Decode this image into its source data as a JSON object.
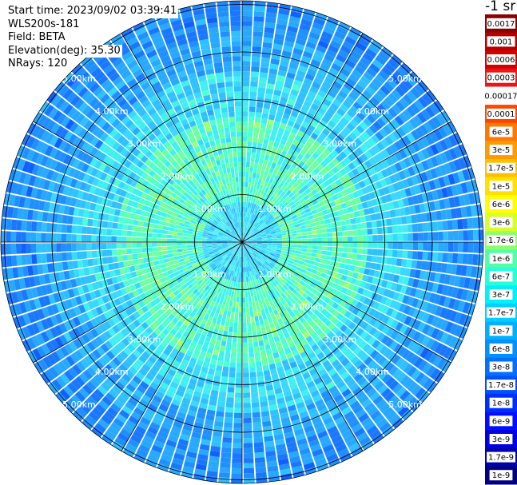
{
  "info": {
    "start_time": "Start time: 2023/09/02 03:39:41",
    "instrument": "WLS200s-181",
    "field": "Field: BETA",
    "elevation": "Elevation(deg): 35.30",
    "nrays": "NRays: 120"
  },
  "colorbar": {
    "units_label": "-1 sr",
    "labels": [
      "0.0017",
      "0.001",
      "0.0006",
      "0.0003",
      "0.00017",
      "0.0001",
      "6e-5",
      "3e-5",
      "1.7e-5",
      "1e-5",
      "6e-6",
      "3e-6",
      "1.7e-6",
      "1e-6",
      "6e-7",
      "3e-7",
      "1.7e-7",
      "1e-7",
      "6e-8",
      "3e-8",
      "1.7e-8",
      "1e-8",
      "6e-9",
      "3e-9",
      "1.7e-9",
      "1e-9"
    ],
    "colors": [
      "#8b0000",
      "#b80000",
      "#d40000",
      "#ee1515",
      "#ffffff",
      "#ff4500",
      "#ff7800",
      "#ff9a00",
      "#ffbf00",
      "#ffe000",
      "#ffff00",
      "#d8ff28",
      "#90ff6e",
      "#50ffa8",
      "#28ffd8",
      "#00f0ff",
      "#00d0ff",
      "#00b0ff",
      "#0090ff",
      "#0070ff",
      "#0050ff",
      "#0030ff",
      "#0010ff",
      "#0000e0",
      "#0000b0",
      "#000080"
    ]
  },
  "range_rings": {
    "labels": [
      "1.00km",
      "2.00km",
      "3.00km",
      "4.00km",
      "5.00km"
    ]
  },
  "colors": {
    "grid_line": "#000000",
    "ring_label": "#ffffff",
    "background": "#ffffff"
  }
}
